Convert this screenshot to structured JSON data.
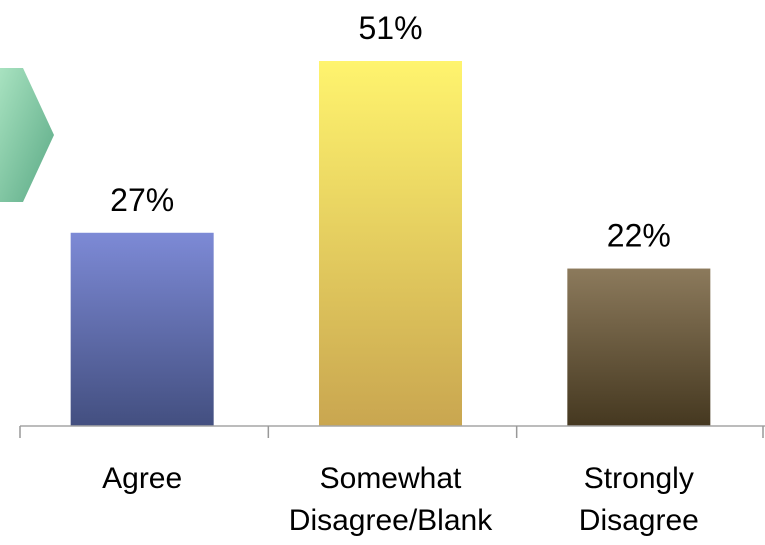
{
  "chart_data": {
    "type": "bar",
    "categories": [
      [
        "Agree"
      ],
      [
        "Somewhat",
        "Disagree/Blank"
      ],
      [
        "Strongly",
        "Disagree"
      ]
    ],
    "values": [
      27,
      51,
      22
    ],
    "value_labels": [
      "27%",
      "51%",
      "22%"
    ],
    "ylim": [
      0,
      55
    ],
    "grid": false,
    "legend": "none",
    "colors": {
      "bars": [
        [
          "#7d8ad6",
          "#434f80"
        ],
        [
          "#fff46e",
          "#c9a650"
        ],
        [
          "#8c7a5c",
          "#453820"
        ]
      ],
      "axis": "#999999",
      "arrow": [
        "#9fdcb7",
        "#5fb08a"
      ]
    }
  }
}
